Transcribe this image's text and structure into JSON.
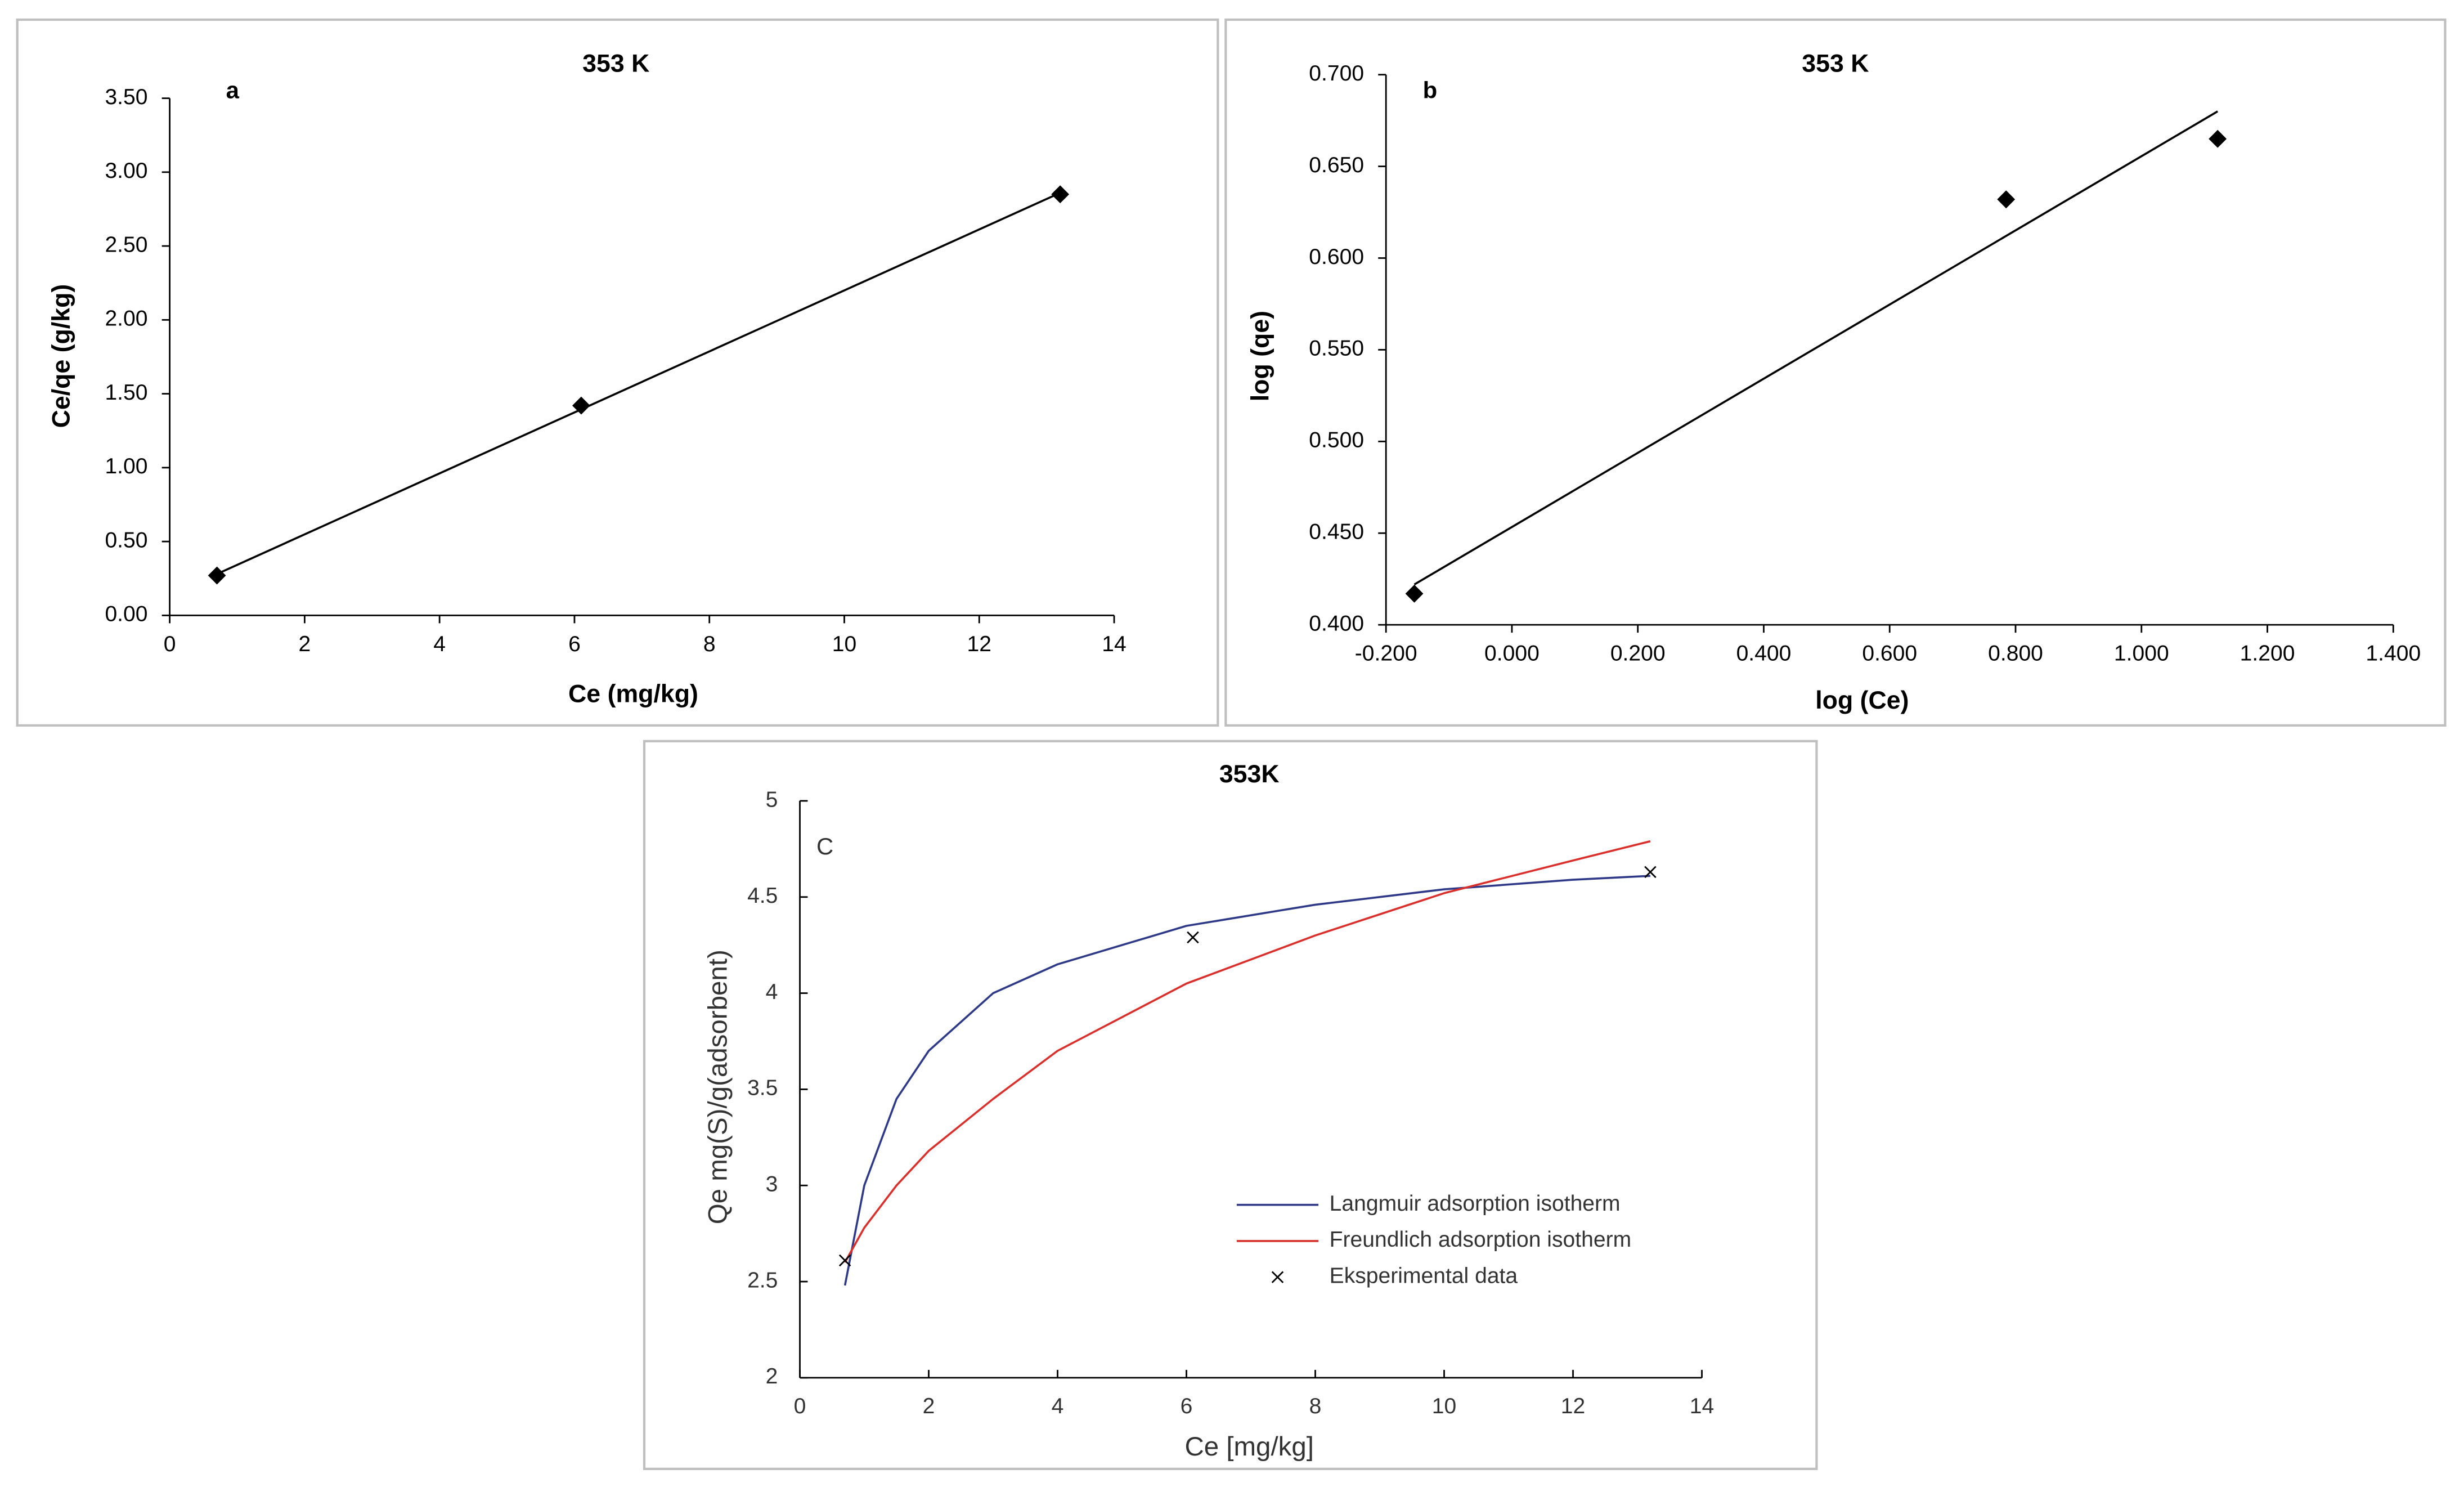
{
  "chart_data": [
    {
      "type": "scatter",
      "title": "353 K",
      "panel_label": "a",
      "x_label": "Ce (mg/kg)",
      "y_label": "Ce/qe (g/kg)",
      "xlim": [
        0,
        14
      ],
      "xticks": [
        0,
        2,
        4,
        6,
        8,
        10,
        12,
        14
      ],
      "ylim": [
        0,
        3.5
      ],
      "yticks": [
        {
          "value": 0,
          "label": "0.00"
        },
        {
          "value": 0.5,
          "label": "0.50"
        },
        {
          "value": 1,
          "label": "1.00"
        },
        {
          "value": 1.5,
          "label": "1.50"
        },
        {
          "value": 2,
          "label": "2.00"
        },
        {
          "value": 2.5,
          "label": "2.50"
        },
        {
          "value": 3,
          "label": "3.00"
        },
        {
          "value": 3.5,
          "label": "3.50"
        }
      ],
      "series": [
        {
          "kind": "line",
          "color": "#000000",
          "x": [
            0.7,
            13.2
          ],
          "values": [
            0.28,
            2.86
          ]
        },
        {
          "kind": "scatter",
          "marker": "diamond",
          "color": "#000000",
          "x": [
            0.7,
            6.1,
            13.2
          ],
          "values": [
            0.27,
            1.42,
            2.85
          ]
        }
      ]
    },
    {
      "type": "scatter",
      "title": "353 K",
      "panel_label": "b",
      "x_label": "log (Ce)",
      "y_label": "log (qe)",
      "xlim": [
        -0.2,
        1.4
      ],
      "xticks": [
        {
          "value": -0.2,
          "label": "-0.200"
        },
        {
          "value": 0,
          "label": "0.000"
        },
        {
          "value": 0.2,
          "label": "0.200"
        },
        {
          "value": 0.4,
          "label": "0.400"
        },
        {
          "value": 0.6,
          "label": "0.600"
        },
        {
          "value": 0.8,
          "label": "0.800"
        },
        {
          "value": 1,
          "label": "1.000"
        },
        {
          "value": 1.2,
          "label": "1.200"
        },
        {
          "value": 1.4,
          "label": "1.400"
        }
      ],
      "ylim": [
        0.4,
        0.7
      ],
      "yticks": [
        {
          "value": 0.4,
          "label": "0.400"
        },
        {
          "value": 0.45,
          "label": "0.450"
        },
        {
          "value": 0.5,
          "label": "0.500"
        },
        {
          "value": 0.55,
          "label": "0.550"
        },
        {
          "value": 0.6,
          "label": "0.600"
        },
        {
          "value": 0.65,
          "label": "0.650"
        },
        {
          "value": 0.7,
          "label": "0.700"
        }
      ],
      "series": [
        {
          "kind": "line",
          "color": "#000000",
          "x": [
            -0.155,
            1.121
          ],
          "values": [
            0.422,
            0.68
          ]
        },
        {
          "kind": "scatter",
          "marker": "diamond",
          "color": "#000000",
          "x": [
            -0.155,
            0.785,
            1.121
          ],
          "values": [
            0.417,
            0.632,
            0.665
          ]
        }
      ]
    },
    {
      "type": "scatter",
      "title": "353K",
      "panel_label": "C",
      "x_label": "Ce [mg/kg]",
      "y_label": "Qe mg(S)/g(adsorbent)",
      "xlim": [
        0,
        14
      ],
      "xticks": [
        0,
        2,
        4,
        6,
        8,
        10,
        12,
        14
      ],
      "ylim": [
        2,
        5
      ],
      "yticks": [
        2,
        2.5,
        3,
        3.5,
        4,
        4.5,
        5
      ],
      "legend": true,
      "series": [
        {
          "name": "Langmuir adsorption isotherm",
          "kind": "line",
          "color": "#2e3a87",
          "x": [
            0.7,
            1,
            1.5,
            2,
            3,
            4,
            6,
            8,
            10,
            12,
            13.2
          ],
          "values": [
            2.48,
            3.0,
            3.45,
            3.7,
            4.0,
            4.15,
            4.35,
            4.46,
            4.54,
            4.59,
            4.61
          ]
        },
        {
          "name": "Freundlich adsorption isotherm",
          "kind": "line",
          "color": "#d9302b",
          "x": [
            0.7,
            1,
            1.5,
            2,
            3,
            4,
            6,
            8,
            10,
            12,
            13.2
          ],
          "values": [
            2.6,
            2.78,
            3.0,
            3.18,
            3.45,
            3.7,
            4.05,
            4.3,
            4.52,
            4.69,
            4.79
          ]
        },
        {
          "name": "Eksperimental data",
          "kind": "scatter",
          "marker": "x",
          "color": "#000000",
          "x": [
            0.7,
            6.1,
            13.2
          ],
          "values": [
            2.61,
            4.29,
            4.63
          ]
        }
      ]
    }
  ]
}
